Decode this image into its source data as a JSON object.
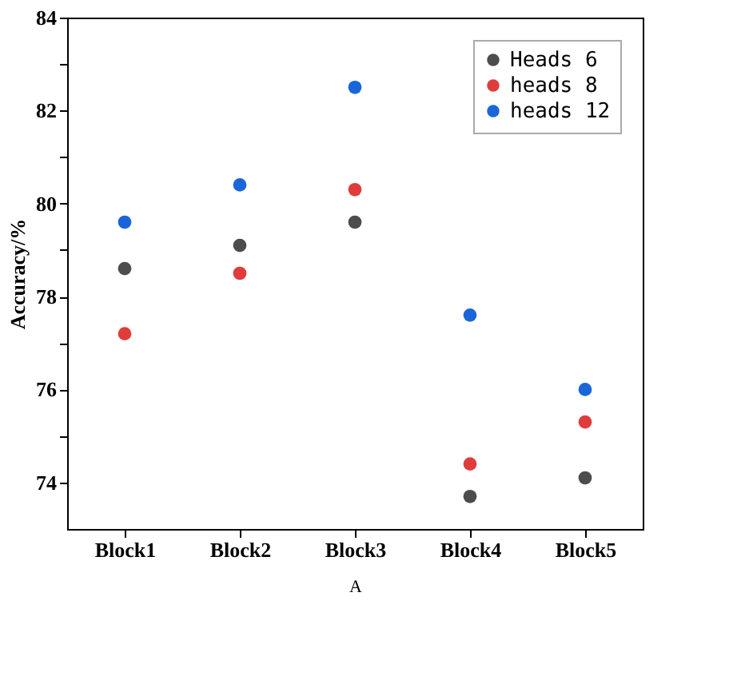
{
  "chart_data": {
    "type": "scatter",
    "xlabel": "A",
    "ylabel": "Accuracy/%",
    "categories": [
      "Block1",
      "Block2",
      "Block3",
      "Block4",
      "Block5"
    ],
    "series": [
      {
        "name": "Heads 6",
        "color": "#4d4d4d",
        "values": [
          78.6,
          79.1,
          79.6,
          73.7,
          74.1
        ]
      },
      {
        "name": "heads 8",
        "color": "#e03c3c",
        "values": [
          77.2,
          78.5,
          80.3,
          74.4,
          75.3
        ]
      },
      {
        "name": "heads 12",
        "color": "#1a66d9",
        "values": [
          79.6,
          80.4,
          82.5,
          77.6,
          76.0
        ]
      }
    ],
    "ylim": [
      73,
      84
    ],
    "yticks": [
      74,
      76,
      78,
      80,
      82,
      84,
      {
        "value": 75,
        "label": null
      },
      {
        "value": 77,
        "label": null
      },
      {
        "value": 79,
        "label": null
      },
      {
        "value": 81,
        "label": null
      },
      {
        "value": 83,
        "label": null
      }
    ],
    "grid": false,
    "legend": "top right",
    "marker": "circle"
  }
}
